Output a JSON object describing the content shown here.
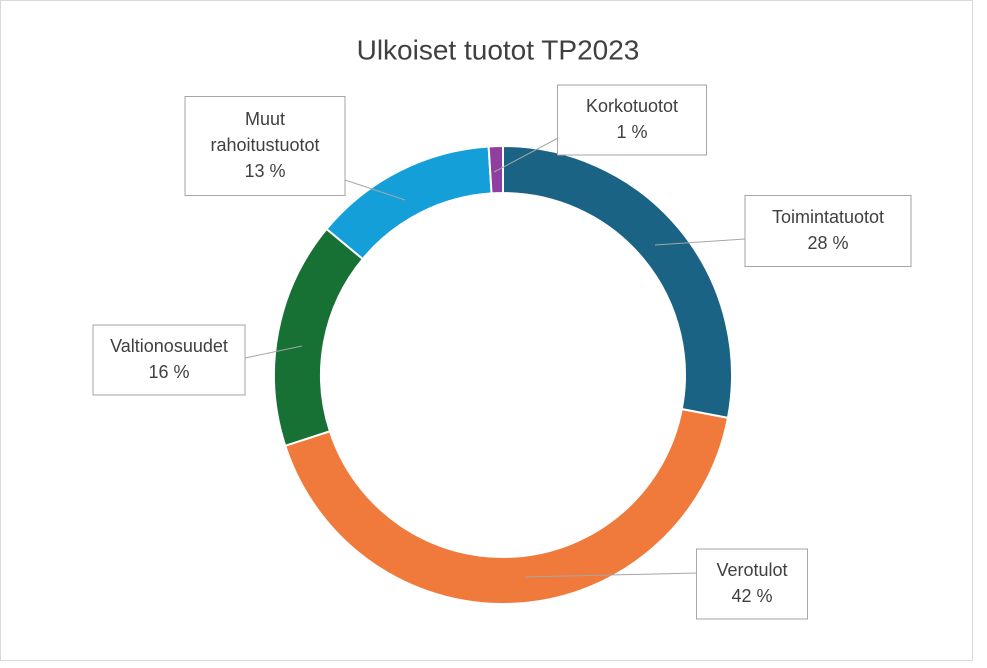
{
  "chart_data": {
    "type": "donut",
    "title": "Ulkoiset tuotot TP2023",
    "categories": [
      "Toimintatuotot",
      "Verotulot",
      "Valtionosuudet",
      "Muut rahoitustuotot",
      "Korkotuotot"
    ],
    "values": [
      28,
      42,
      16,
      13,
      1
    ],
    "value_labels": [
      "28 %",
      "42 %",
      "16 %",
      "13 %",
      "1 %"
    ],
    "colors": [
      "#1b6385",
      "#ef7a3b",
      "#177034",
      "#159fd8",
      "#8e3fa0"
    ]
  }
}
